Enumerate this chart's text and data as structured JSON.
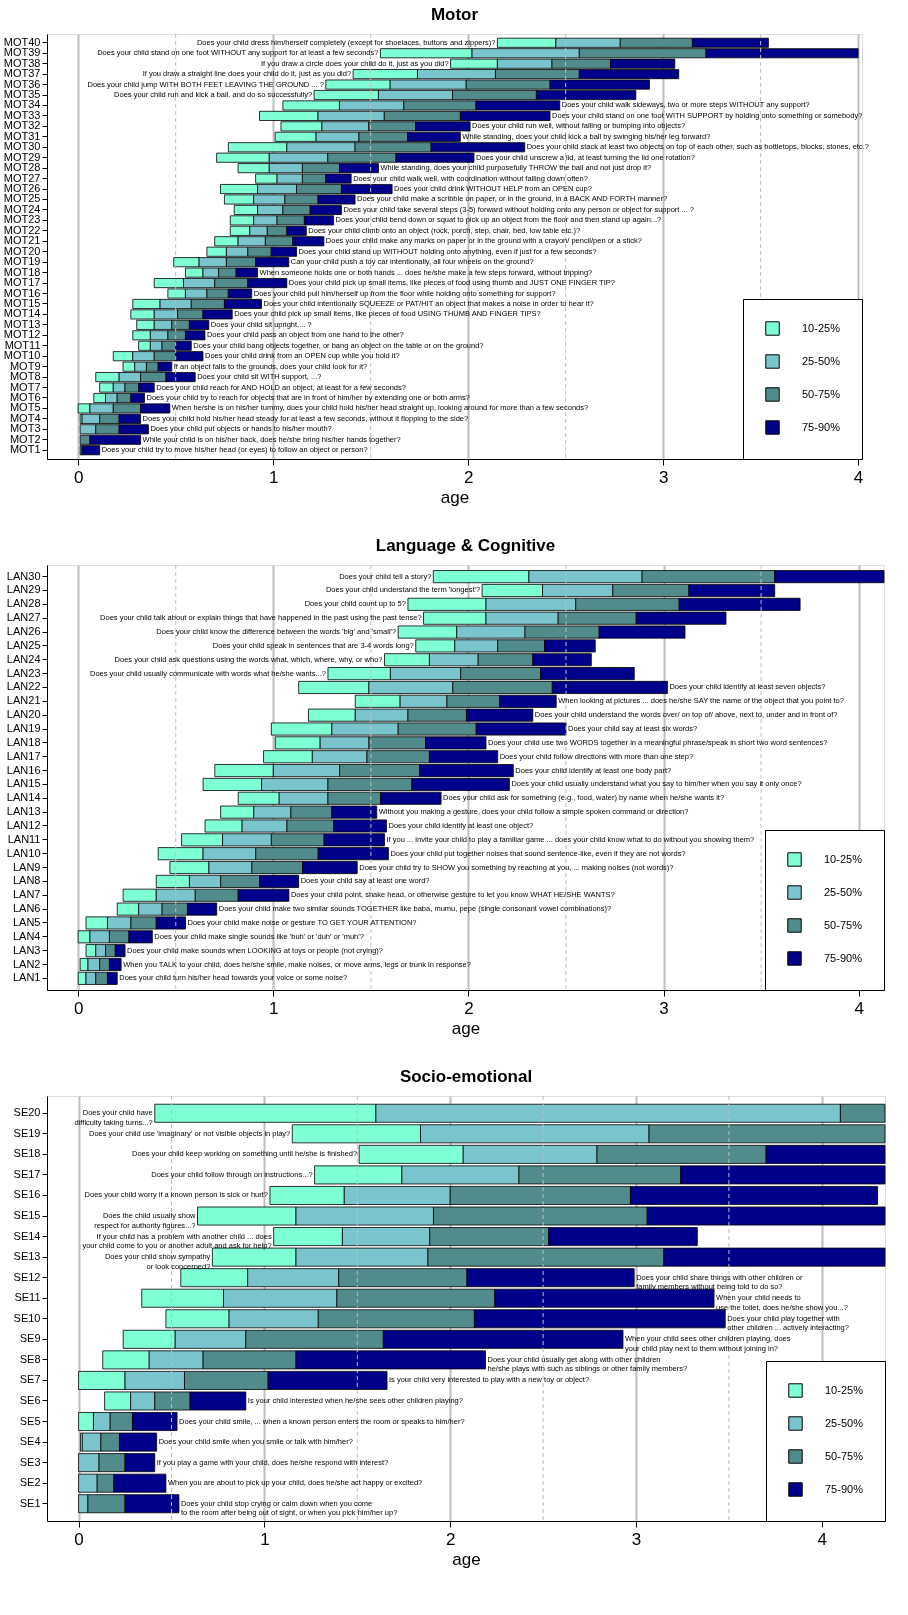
{
  "chart_data": [
    {
      "type": "bar",
      "orientation": "horizontal",
      "title": "Motor",
      "xlabel": "age",
      "xlim": [
        -0.16,
        4.02
      ],
      "xticks": [
        0,
        1,
        2,
        3,
        4
      ],
      "grid": "x",
      "legend": "bottom right",
      "categories": [
        "MOT40",
        "MOT39",
        "MOT38",
        "MOT37",
        "MOT36",
        "MOT35",
        "MOT34",
        "MOT33",
        "MOT32",
        "MOT31",
        "MOT30",
        "MOT29",
        "MOT28",
        "MOT27",
        "MOT26",
        "MOT25",
        "MOT24",
        "MOT23",
        "MOT22",
        "MOT21",
        "MOT20",
        "MOT19",
        "MOT18",
        "MOT17",
        "MOT16",
        "MOT15",
        "MOT14",
        "MOT13",
        "MOT12",
        "MOT11",
        "MOT10",
        "MOT9",
        "MOT8",
        "MOT7",
        "MOT6",
        "MOT5",
        "MOT4",
        "MOT3",
        "MOT2",
        "MOT1"
      ],
      "series": [
        {
          "name": "10-25%",
          "color": "#7fffd4",
          "base": [
            2.15,
            1.55,
            1.91,
            1.41,
            1.27,
            1.21,
            1.05,
            0.93,
            1.04,
            1.01,
            0.77,
            0.71,
            0.82,
            0.91,
            0.73,
            0.75,
            0.8,
            0.78,
            0.78,
            0.7,
            0.66,
            0.49,
            0.55,
            0.39,
            0.46,
            0.28,
            0.27,
            0.3,
            0.28,
            0.31,
            0.18,
            0.23,
            0.09,
            0.11,
            0.08,
            0.0,
            0.01,
            null,
            null,
            null
          ],
          "values": [
            0.3,
            0.47,
            0.24,
            0.33,
            0.33,
            0.33,
            0.29,
            0.3,
            0.21,
            0.21,
            0.3,
            0.27,
            0.16,
            0.11,
            0.19,
            0.15,
            0.12,
            0.12,
            0.1,
            0.12,
            0.1,
            0.13,
            0.09,
            0.15,
            0.09,
            0.14,
            0.12,
            0.09,
            0.09,
            0.06,
            0.1,
            0.06,
            0.12,
            0.07,
            0.06,
            0.06,
            0.01,
            null,
            null,
            null
          ]
        },
        {
          "name": "25-50%",
          "color": "#7ac5cd",
          "base": [
            2.45,
            2.02,
            2.15,
            1.74,
            1.6,
            1.54,
            1.34,
            1.23,
            1.25,
            1.22,
            1.07,
            0.98,
            0.98,
            1.02,
            0.92,
            0.9,
            0.92,
            0.9,
            0.88,
            0.82,
            0.76,
            0.62,
            0.64,
            0.54,
            0.55,
            0.42,
            0.39,
            0.39,
            0.37,
            0.37,
            0.28,
            0.29,
            0.21,
            0.18,
            0.14,
            0.06,
            0.02,
            0.01,
            null,
            null
          ],
          "values": [
            0.33,
            0.55,
            0.28,
            0.4,
            0.39,
            0.38,
            0.33,
            0.34,
            0.24,
            0.22,
            0.35,
            0.3,
            0.17,
            0.13,
            0.2,
            0.16,
            0.13,
            0.12,
            0.09,
            0.14,
            0.11,
            0.14,
            0.08,
            0.16,
            0.11,
            0.16,
            0.12,
            0.09,
            0.09,
            0.06,
            0.11,
            0.06,
            0.11,
            0.06,
            0.06,
            0.12,
            0.09,
            0.08,
            null,
            null
          ]
        },
        {
          "name": "50-75%",
          "color": "#528b8b",
          "base": [
            2.78,
            2.57,
            2.43,
            2.14,
            1.99,
            1.92,
            1.67,
            1.57,
            1.49,
            1.44,
            1.42,
            1.28,
            1.15,
            1.15,
            1.12,
            1.06,
            1.05,
            1.02,
            0.97,
            0.96,
            0.87,
            0.76,
            0.72,
            0.7,
            0.66,
            0.58,
            0.51,
            0.48,
            0.46,
            0.43,
            0.39,
            0.35,
            0.32,
            0.24,
            0.2,
            0.18,
            0.11,
            0.09,
            0.01,
            0.01
          ],
          "values": [
            0.37,
            0.65,
            0.3,
            0.43,
            0.43,
            0.43,
            0.37,
            0.39,
            0.24,
            0.25,
            0.39,
            0.35,
            0.19,
            0.12,
            0.23,
            0.17,
            0.14,
            0.14,
            0.1,
            0.14,
            0.12,
            0.15,
            0.09,
            0.17,
            0.11,
            0.17,
            0.13,
            0.09,
            0.09,
            0.07,
            0.11,
            0.06,
            0.13,
            0.07,
            0.07,
            0.14,
            0.1,
            0.12,
            0.05,
            0.01
          ]
        },
        {
          "name": "75-90%",
          "color": "#00008b",
          "base": [
            3.15,
            3.22,
            2.73,
            2.57,
            2.42,
            2.35,
            2.04,
            1.96,
            1.73,
            1.69,
            1.81,
            1.63,
            1.34,
            1.27,
            1.35,
            1.23,
            1.19,
            1.16,
            1.07,
            1.1,
            0.99,
            0.91,
            0.81,
            0.87,
            0.77,
            0.75,
            0.64,
            0.57,
            0.55,
            0.5,
            0.5,
            0.41,
            0.45,
            0.31,
            0.27,
            0.32,
            0.21,
            0.21,
            0.06,
            0.02
          ],
          "values": [
            0.39,
            0.78,
            0.33,
            0.51,
            0.51,
            0.51,
            0.43,
            0.46,
            0.28,
            0.27,
            0.48,
            0.4,
            0.2,
            0.13,
            0.26,
            0.19,
            0.16,
            0.15,
            0.1,
            0.16,
            0.13,
            0.17,
            0.11,
            0.2,
            0.12,
            0.19,
            0.15,
            0.1,
            0.1,
            0.08,
            0.14,
            0.07,
            0.15,
            0.08,
            0.07,
            0.15,
            0.11,
            0.15,
            0.26,
            0.09
          ]
        }
      ],
      "ref_lines": [
        {
          "axis": "x",
          "value": 0.5,
          "color": "#bebebe",
          "line_style": "dashed"
        },
        {
          "axis": "x",
          "value": 1.5,
          "color": "#bebebe",
          "line_style": "dashed"
        },
        {
          "axis": "x",
          "value": 2.5,
          "color": "#bebebe",
          "line_style": "dashed"
        },
        {
          "axis": "x",
          "value": 3.5,
          "color": "#bebebe",
          "line_style": "dashed"
        }
      ],
      "annotations": [
        {
          "text": "Does your child dress him/herself completely (except for shoelaces, buttons and zippers)?",
          "x": 2.15,
          "y": "MOT40"
        },
        {
          "text": "Does your child stand on one foot WITHOUT any support for at least a few seconds?",
          "x": 1.55,
          "y": "MOT39"
        },
        {
          "text": "If you draw a circle does your child do it, just as you did?",
          "x": 1.91,
          "y": "MOT38"
        },
        {
          "text": "If you draw a straight line does your child do it, just as you did?",
          "x": 1.41,
          "y": "MOT37"
        },
        {
          "text": "Does your child jump WITH BOTH FEET LEAVING THE GROUND ... ?",
          "x": 1.27,
          "y": "MOT36"
        },
        {
          "text": "Does your child run and kick a ball, and do so successfully?",
          "x": 1.21,
          "y": "MOT35"
        },
        {
          "text": "Does your child walk sideways, two or more steps WITHOUT any support?",
          "x": 2.47,
          "y": "MOT34"
        },
        {
          "text": "Does your child stand on one foot WITH SUPPORT by holding onto something or somebody?",
          "x": 2.42,
          "y": "MOT33"
        },
        {
          "text": "Does your child run well, without falling or bumping into objects?",
          "x": 2.01,
          "y": "MOT32"
        },
        {
          "text": "While standing, does your child kick a ball by swinging his/her leg forward?",
          "x": 1.96,
          "y": "MOT31"
        },
        {
          "text": "Does your child stack at least two objects on top of each other, such as bottletops, blocks, stones, etc.?",
          "x": 2.29,
          "y": "MOT30"
        },
        {
          "text": "Does your child unscrew a lid, at least turning the lid one rotation?",
          "x": 2.03,
          "y": "MOT29"
        },
        {
          "text": "While standing, does your child purposefully THROW the ball and not just drop it?",
          "x": 1.54,
          "y": "MOT28"
        },
        {
          "text": "Does your child walk well, with coordination without falling down often?",
          "x": 1.4,
          "y": "MOT27"
        },
        {
          "text": "Does your child drink WITHOUT HELP from an OPEN cup?",
          "x": 1.61,
          "y": "MOT26"
        },
        {
          "text": "Does your child make a scribble on paper, or in the ground, in a BACK AND FORTH manner?",
          "x": 1.42,
          "y": "MOT25"
        },
        {
          "text": "Does your child take several steps (3-5) forward without holding onto any person or object for support ... ?",
          "x": 1.35,
          "y": "MOT24"
        },
        {
          "text": "Does your child bend down or squat to pick up an object from the floor and then stand up again...?",
          "x": 1.31,
          "y": "MOT23"
        },
        {
          "text": "Does your child climb onto an object (rock, porch, step, chair, bed, low table etc.)?",
          "x": 1.17,
          "y": "MOT22"
        },
        {
          "text": "Does your child make any marks on paper or in the ground with a crayon/ pencil/pen or a stick?",
          "x": 1.26,
          "y": "MOT21"
        },
        {
          "text": "Does your child stand up WITHOUT holding onto anything, even if just for a few seconds?",
          "x": 1.12,
          "y": "MOT20"
        },
        {
          "text": "Can your child push a toy car intentionally, all four wheels on the ground?",
          "x": 1.08,
          "y": "MOT19"
        },
        {
          "text": "When someone holds one or both hands ... does he/she make a few steps forward, without tripping?",
          "x": 0.92,
          "y": "MOT18"
        },
        {
          "text": "Does your child pick up small items, like pieces of food using thumb and JUST ONE FINGER TIP?",
          "x": 1.07,
          "y": "MOT17"
        },
        {
          "text": "Does your child pull him/herself up from the floor while holding onto something for support?",
          "x": 0.89,
          "y": "MOT16"
        },
        {
          "text": "Does your child intentionally SQUEEZE or PAT/HIT an object that makes a noise in order to hear it?",
          "x": 0.94,
          "y": "MOT15"
        },
        {
          "text": "Does your child pick up small items, like pieces of food USING THUMB AND FINGER TIPS?",
          "x": 0.79,
          "y": "MOT14"
        },
        {
          "text": "Does your child sit upright,... ?",
          "x": 0.67,
          "y": "MOT13"
        },
        {
          "text": "Does your child pass an object from one hand to the other?",
          "x": 0.65,
          "y": "MOT12"
        },
        {
          "text": "Does your child bang objects together, or bang an object on the table or on the ground?",
          "x": 0.58,
          "y": "MOT11"
        },
        {
          "text": "Does your child drink from an OPEN cup while you hold it?",
          "x": 0.64,
          "y": "MOT10"
        },
        {
          "text": "If an object falls to the grounds, does your child look for it?",
          "x": 0.48,
          "y": "MOT9"
        },
        {
          "text": "Does your child sit WITH support, ...?",
          "x": 0.6,
          "y": "MOT8"
        },
        {
          "text": "Does your child reach for AND HOLD an object, at least for a few seconds?",
          "x": 0.39,
          "y": "MOT7"
        },
        {
          "text": "Does your child try to reach for objects that are in front of him/her by extending one or both arms?",
          "x": 0.34,
          "y": "MOT6"
        },
        {
          "text": "When he/she is on his/her tummy, does your child hold his/her head straight up, looking around for more than a few seconds?",
          "x": 0.47,
          "y": "MOT5"
        },
        {
          "text": "Does your child hold his/her head steady for at least a few seconds, without it flopping to the side?",
          "x": 0.32,
          "y": "MOT4"
        },
        {
          "text": "Does your child put objects or hands to his/her mouth?",
          "x": 0.36,
          "y": "MOT3"
        },
        {
          "text": "While your child is on his/her back, does he/she bring his/her hands together?",
          "x": 0.32,
          "y": "MOT2"
        },
        {
          "text": "Does your child try to move his/her head (or eyes) to follow an object or person?",
          "x": 0.11,
          "y": "MOT1"
        }
      ]
    },
    {
      "type": "bar",
      "orientation": "horizontal",
      "title": "Language & Cognitive",
      "xlabel": "age",
      "xlim": [
        -0.16,
        4.13
      ],
      "xticks": [
        0,
        1,
        2,
        3,
        4
      ],
      "grid": "x",
      "legend": "bottom right",
      "categories": [
        "LAN30",
        "LAN29",
        "LAN28",
        "LAN27",
        "LAN26",
        "LAN25",
        "LAN24",
        "LAN23",
        "LAN22",
        "LAN21",
        "LAN20",
        "LAN19",
        "LAN18",
        "LAN17",
        "LAN16",
        "LAN15",
        "LAN14",
        "LAN13",
        "LAN12",
        "LAN11",
        "LAN10",
        "LAN9",
        "LAN8",
        "LAN7",
        "LAN6",
        "LAN5",
        "LAN4",
        "LAN3",
        "LAN2",
        "LAN1"
      ],
      "series": [
        {
          "name": "10-25%",
          "color": "#7fffd4",
          "base": [
            1.82,
            2.07,
            1.69,
            1.77,
            1.64,
            1.73,
            1.57,
            1.28,
            1.13,
            1.42,
            1.18,
            0.99,
            1.01,
            0.95,
            0.7,
            0.64,
            0.82,
            0.73,
            0.65,
            0.53,
            0.41,
            0.47,
            0.4,
            0.23,
            0.2,
            0.04,
            0.0,
            0.04,
            0.01,
            0.0
          ],
          "values": [
            0.49,
            0.31,
            0.4,
            0.32,
            0.3,
            0.2,
            0.23,
            0.32,
            0.36,
            0.23,
            0.24,
            0.31,
            0.23,
            0.25,
            0.3,
            0.3,
            0.21,
            0.17,
            0.19,
            0.21,
            0.23,
            0.2,
            0.17,
            0.17,
            0.11,
            0.11,
            0.06,
            0.05,
            0.04,
            0.04
          ]
        },
        {
          "name": "25-50%",
          "color": "#7ac5cd",
          "base": [
            2.31,
            2.38,
            2.09,
            2.09,
            1.94,
            1.93,
            1.8,
            1.6,
            1.49,
            1.65,
            1.42,
            1.3,
            1.24,
            1.2,
            1.0,
            0.94,
            1.03,
            0.9,
            0.84,
            0.74,
            0.64,
            0.67,
            0.57,
            0.4,
            0.31,
            0.15,
            0.06,
            0.09,
            0.05,
            0.04
          ],
          "values": [
            0.58,
            0.36,
            0.46,
            0.37,
            0.35,
            0.22,
            0.25,
            0.36,
            0.43,
            0.24,
            0.27,
            0.34,
            0.25,
            0.28,
            0.34,
            0.34,
            0.25,
            0.19,
            0.23,
            0.25,
            0.27,
            0.22,
            0.16,
            0.2,
            0.12,
            0.12,
            0.1,
            0.05,
            0.06,
            0.05
          ]
        },
        {
          "name": "50-75%",
          "color": "#528b8b",
          "base": [
            2.89,
            2.74,
            2.55,
            2.46,
            2.29,
            2.15,
            2.05,
            1.96,
            1.92,
            1.89,
            1.69,
            1.64,
            1.49,
            1.48,
            1.34,
            1.28,
            1.28,
            1.09,
            1.07,
            0.99,
            0.91,
            0.89,
            0.73,
            0.6,
            0.43,
            0.27,
            0.16,
            0.14,
            0.11,
            0.09
          ],
          "values": [
            0.68,
            0.39,
            0.53,
            0.4,
            0.38,
            0.24,
            0.28,
            0.41,
            0.51,
            0.27,
            0.3,
            0.4,
            0.29,
            0.32,
            0.41,
            0.43,
            0.27,
            0.21,
            0.24,
            0.27,
            0.32,
            0.26,
            0.2,
            0.22,
            0.13,
            0.13,
            0.1,
            0.05,
            0.05,
            0.06
          ]
        },
        {
          "name": "75-90%",
          "color": "#00008b",
          "base": [
            3.57,
            3.13,
            3.08,
            2.86,
            2.67,
            2.39,
            2.33,
            2.37,
            2.43,
            2.16,
            1.99,
            2.04,
            1.78,
            1.8,
            1.75,
            1.71,
            1.55,
            1.3,
            1.31,
            1.26,
            1.23,
            1.15,
            0.93,
            0.82,
            0.56,
            0.4,
            0.26,
            0.19,
            0.16,
            0.15
          ],
          "values": [
            0.56,
            0.44,
            0.62,
            0.46,
            0.44,
            0.26,
            0.3,
            0.48,
            0.59,
            0.29,
            0.34,
            0.46,
            0.31,
            0.35,
            0.48,
            0.5,
            0.31,
            0.23,
            0.27,
            0.31,
            0.36,
            0.28,
            0.2,
            0.26,
            0.15,
            0.15,
            0.12,
            0.05,
            0.06,
            0.05
          ]
        }
      ],
      "ref_lines": [
        {
          "axis": "x",
          "value": 0.5,
          "color": "#bebebe",
          "line_style": "dashed"
        },
        {
          "axis": "x",
          "value": 1.5,
          "color": "#bebebe",
          "line_style": "dashed"
        },
        {
          "axis": "x",
          "value": 2.5,
          "color": "#bebebe",
          "line_style": "dashed"
        },
        {
          "axis": "x",
          "value": 3.5,
          "color": "#bebebe",
          "line_style": "dashed"
        }
      ],
      "annotations": [
        {
          "text": "Does your child tell a story?",
          "x": 1.82,
          "y": "LAN30"
        },
        {
          "text": "Does your child understand the term 'longest'?",
          "x": 2.07,
          "y": "LAN29"
        },
        {
          "text": "Does your child count up to 5?",
          "x": 1.69,
          "y": "LAN28"
        },
        {
          "text": "Does your child talk about or explain things that have happened in the past using the past tense?",
          "x": 1.77,
          "y": "LAN27"
        },
        {
          "text": "Does your child know the difference between the words 'big' and 'small'?",
          "x": 1.64,
          "y": "LAN26"
        },
        {
          "text": "Does your child speak in sentences that are 3-4 words long?",
          "x": 1.73,
          "y": "LAN25"
        },
        {
          "text": "Does your child ask questions using the words what, which, where, why, or who?",
          "x": 1.57,
          "y": "LAN24"
        },
        {
          "text": "Does your child usually communicate with words what he/she wants...?",
          "x": 1.28,
          "y": "LAN23"
        },
        {
          "text": "Does your child identify at least seven objects?",
          "x": 3.02,
          "y": "LAN22"
        },
        {
          "text": "When looking at pictures ... does he/she SAY the name of the object that you point to?",
          "x": 2.45,
          "y": "LAN21"
        },
        {
          "text": "Does your child understand the words over/ on top of/ above, next to, under and in front of?",
          "x": 2.33,
          "y": "LAN20"
        },
        {
          "text": "Does your child say at least six words?",
          "x": 2.5,
          "y": "LAN19"
        },
        {
          "text": "Does your child use two WORDS together in a meaningful phrase/speak in short two word sentences?",
          "x": 2.09,
          "y": "LAN18"
        },
        {
          "text": "Does your child follow directions with more than one step?",
          "x": 2.15,
          "y": "LAN17"
        },
        {
          "text": "Does your child identify at least one body part?",
          "x": 2.23,
          "y": "LAN16"
        },
        {
          "text": "Does your child usually understand what you say to him/her when you say it only once?",
          "x": 2.21,
          "y": "LAN15"
        },
        {
          "text": "Does your child ask for something (e.g., food, water) by name when he/she wants it?",
          "x": 1.86,
          "y": "LAN14"
        },
        {
          "text": "Without you making a gesture, does your child follow a simple spoken command or direction?",
          "x": 1.53,
          "y": "LAN13"
        },
        {
          "text": "Does your child identify at least one object?",
          "x": 1.58,
          "y": "LAN12"
        },
        {
          "text": "If you ... invite your child to play a familiar game ... does your child know what to do without you showing them?",
          "x": 1.57,
          "y": "LAN11"
        },
        {
          "text": "Does your child put together noises that sound sentence-like, even if they are not words?",
          "x": 1.59,
          "y": "LAN10"
        },
        {
          "text": "Does your child try to SHOW you something by reaching at you, ... making noises (not words)?",
          "x": 1.43,
          "y": "LAN9"
        },
        {
          "text": "Does your child say at least one word?",
          "x": 1.13,
          "y": "LAN8"
        },
        {
          "text": "Does your child point, shake head, or otherwise gesture to let you know WHAT HE/SHE WANTS?",
          "x": 1.08,
          "y": "LAN7"
        },
        {
          "text": "Does your child make two similar sounds TOGETHER like baba, mumu, pepe (single consonant vowel combinations)?",
          "x": 0.71,
          "y": "LAN6"
        },
        {
          "text": "Does your child make noise or gesture TO GET YOUR ATTENTION?",
          "x": 0.55,
          "y": "LAN5"
        },
        {
          "text": "Does your child make single sounds like 'buh' or 'duh' or 'muh'?",
          "x": 0.38,
          "y": "LAN4"
        },
        {
          "text": "Does your child make sounds when LOOKING at toys or people (not crying)?",
          "x": 0.24,
          "y": "LAN3"
        },
        {
          "text": "When you TALK to your child, does he/she smile, make noises, or move arms, legs or trunk in response?",
          "x": 0.22,
          "y": "LAN2"
        },
        {
          "text": "Does your child turn his/her head towards your voice or some noise?",
          "x": 0.2,
          "y": "LAN1"
        }
      ]
    },
    {
      "type": "bar",
      "orientation": "horizontal",
      "title": "Socio-emotional",
      "xlabel": "age",
      "xlim": [
        -0.17,
        4.34
      ],
      "xticks": [
        0,
        1,
        2,
        3,
        4
      ],
      "grid": "x",
      "legend": "bottom right",
      "categories": [
        "SE20",
        "SE19",
        "SE18",
        "SE17",
        "SE16",
        "SE15",
        "SE14",
        "SE13",
        "SE12",
        "SE11",
        "SE10",
        "SE9",
        "SE8",
        "SE7",
        "SE6",
        "SE5",
        "SE4",
        "SE3",
        "SE2",
        "SE1"
      ],
      "series": [
        {
          "name": "10-25%",
          "color": "#7fffd4",
          "base": [
            0.41,
            1.15,
            1.51,
            1.27,
            1.03,
            0.64,
            1.05,
            0.72,
            0.55,
            0.34,
            0.47,
            0.24,
            0.13,
            0.0,
            0.14,
            0.0,
            0.01,
            null,
            null,
            null
          ],
          "values": [
            1.19,
            0.69,
            0.56,
            0.47,
            0.4,
            0.53,
            0.37,
            0.45,
            0.36,
            0.44,
            0.34,
            0.28,
            0.25,
            0.25,
            0.14,
            0.08,
            0.01,
            null,
            null,
            null
          ]
        },
        {
          "name": "25-50%",
          "color": "#7ac5cd",
          "base": [
            1.6,
            1.84,
            2.07,
            1.74,
            1.43,
            1.17,
            1.42,
            1.17,
            0.91,
            0.78,
            0.81,
            0.52,
            0.38,
            0.25,
            0.28,
            0.08,
            0.02,
            0.0,
            0.0,
            0.0
          ],
          "values": [
            2.5,
            1.23,
            0.72,
            0.63,
            0.57,
            0.74,
            0.47,
            0.71,
            0.49,
            0.61,
            0.48,
            0.38,
            0.29,
            0.32,
            0.13,
            0.09,
            0.1,
            0.11,
            0.1,
            0.05
          ]
        },
        {
          "name": "50-75%",
          "color": "#528b8b",
          "base": [
            4.1,
            3.07,
            2.79,
            2.37,
            2.0,
            1.91,
            1.89,
            1.88,
            1.4,
            1.39,
            1.29,
            0.9,
            0.67,
            0.57,
            0.41,
            0.17,
            0.12,
            0.11,
            0.1,
            0.05
          ],
          "values": [
            0.24,
            1.27,
            0.91,
            0.87,
            0.97,
            1.15,
            0.64,
            1.27,
            0.69,
            0.85,
            0.84,
            0.74,
            0.5,
            0.45,
            0.19,
            0.12,
            0.1,
            0.14,
            0.09,
            0.2
          ]
        },
        {
          "name": "75-90%",
          "color": "#00008b",
          "base": [
            null,
            null,
            3.7,
            3.24,
            2.97,
            3.06,
            2.53,
            3.15,
            2.09,
            2.24,
            2.13,
            1.64,
            1.17,
            1.02,
            0.6,
            0.29,
            0.22,
            0.25,
            0.19,
            0.25
          ],
          "values": [
            null,
            null,
            0.64,
            1.1,
            1.33,
            1.28,
            0.8,
            1.19,
            0.9,
            1.18,
            1.35,
            1.29,
            1.02,
            0.64,
            0.3,
            0.24,
            0.2,
            0.16,
            0.28,
            0.29
          ]
        }
      ],
      "ref_lines": [
        {
          "axis": "x",
          "value": 0.5,
          "color": "#bebebe",
          "line_style": "dashed"
        },
        {
          "axis": "x",
          "value": 1.5,
          "color": "#bebebe",
          "line_style": "dashed"
        },
        {
          "axis": "x",
          "value": 2.5,
          "color": "#bebebe",
          "line_style": "dashed"
        },
        {
          "axis": "x",
          "value": 3.5,
          "color": "#bebebe",
          "line_style": "dashed"
        }
      ],
      "annotations": [
        {
          "text": "Does your child have\ndifficulty taking turns...?",
          "x": 0.41,
          "y": "SE20"
        },
        {
          "text": "Does your child use 'imaginary' or not visible objects in play?",
          "x": 1.15,
          "y": "SE19"
        },
        {
          "text": "Does your child keep working on something until he/she is finished?",
          "x": 1.51,
          "y": "SE18"
        },
        {
          "text": "Does your child follow through on instructions...?",
          "x": 1.27,
          "y": "SE17"
        },
        {
          "text": "Does your child worry if a known person is sick or hurt?",
          "x": 1.03,
          "y": "SE16"
        },
        {
          "text": "Does the child usually show\nrespect for authority figures...?",
          "x": 0.64,
          "y": "SE15"
        },
        {
          "text": "If your child has a problem with another child ... does\nyour child come to you or another adult and ask for help?",
          "x": 1.05,
          "y": "SE14"
        },
        {
          "text": "Does your child show sympathy\nor look concerned?",
          "x": 0.72,
          "y": "SE13"
        },
        {
          "text": "Does your child share things with other children or\nfamily members without being told to do so?",
          "x": 2.99,
          "y": "SE12"
        },
        {
          "text": "When your child needs to\nuse the toilet, does he/she show you...?",
          "x": 3.42,
          "y": "SE11"
        },
        {
          "text": "Does your child play together with\nother children ... actively interacting?",
          "x": 3.48,
          "y": "SE10"
        },
        {
          "text": "When your child sees other children playing, does\nyour child play next to them without joining in?",
          "x": 2.93,
          "y": "SE9"
        },
        {
          "text": "Does your child usually get along with other children\nhe/she plays with such as siblings or other family members?",
          "x": 2.19,
          "y": "SE8"
        },
        {
          "text": "Is your child very interested to play with a new toy or object?",
          "x": 1.66,
          "y": "SE7"
        },
        {
          "text": "Is your child interested when he/she sees other children playing?",
          "x": 0.9,
          "y": "SE6"
        },
        {
          "text": "Does your child smile, ... when a known person enters the room or speaks to him/her?",
          "x": 0.53,
          "y": "SE5"
        },
        {
          "text": "Does your child smile when you smile or talk with him/her?",
          "x": 0.42,
          "y": "SE4"
        },
        {
          "text": "If you play a game with your child, does he/she respond with interest?",
          "x": 0.41,
          "y": "SE3"
        },
        {
          "text": "When you are about to pick up your child, does he/she act happy or excited?",
          "x": 0.47,
          "y": "SE2"
        },
        {
          "text": "Does your child stop crying or calm down when you come\nto the room after being out of sight, or when you pick him/her up?",
          "x": 0.54,
          "y": "SE1"
        }
      ]
    }
  ]
}
